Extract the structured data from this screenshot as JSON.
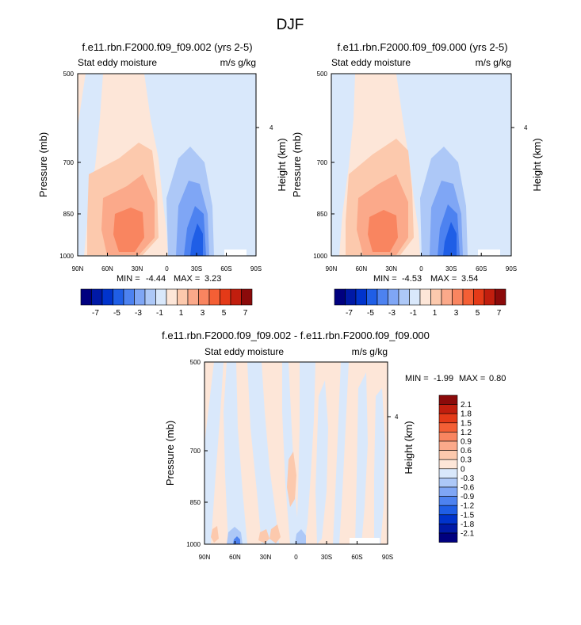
{
  "figure": {
    "title": "DJF"
  },
  "panels": [
    {
      "title": "f.e11.rbn.F2000.f09_f09.002 (yrs 2-5)",
      "left_label": "Stat eddy moisture",
      "right_label": "m/s g/kg",
      "ylabel": "Pressure (mb)",
      "y2label": "Height (km)",
      "yticks": [
        "500",
        "700",
        "850",
        "1000"
      ],
      "y2ticks": [
        "4"
      ],
      "xticks": [
        "90N",
        "60N",
        "30N",
        "0",
        "30S",
        "60S",
        "90S"
      ],
      "min_label": "MIN =",
      "min_value": "-4.44",
      "max_label": "MAX =",
      "max_value": "3.23"
    },
    {
      "title": "f.e11.rbn.F2000.f09_f09.000 (yrs 2-5)",
      "left_label": "Stat eddy moisture",
      "right_label": "m/s g/kg",
      "ylabel": "Pressure (mb)",
      "y2label": "Height (km)",
      "yticks": [
        "500",
        "700",
        "850",
        "1000"
      ],
      "y2ticks": [
        "4"
      ],
      "xticks": [
        "90N",
        "60N",
        "30N",
        "0",
        "30S",
        "60S",
        "90S"
      ],
      "min_label": "MIN =",
      "min_value": "-4.53",
      "max_label": "MAX =",
      "max_value": "3.54"
    },
    {
      "title": "f.e11.rbn.F2000.f09_f09.002 - f.e11.rbn.F2000.f09_f09.000",
      "left_label": "Stat eddy moisture",
      "right_label": "m/s g/kg",
      "ylabel": "Pressure (mb)",
      "y2label": "Height (km)",
      "yticks": [
        "500",
        "700",
        "850",
        "1000"
      ],
      "y2ticks": [
        "4"
      ],
      "xticks": [
        "90N",
        "60N",
        "30N",
        "0",
        "30S",
        "60S",
        "90S"
      ],
      "min_label": "MIN =",
      "min_value": "-1.99",
      "max_label": "MAX =",
      "max_value": "0.80"
    }
  ],
  "colorbar_top": {
    "labels": [
      "-7",
      "-5",
      "-3",
      "-1",
      "1",
      "3",
      "5",
      "7"
    ],
    "colors": [
      "#00007f",
      "#0019a6",
      "#0033cc",
      "#1f5ee6",
      "#4d82f0",
      "#7fa6f5",
      "#adc8f7",
      "#d9e8fb",
      "#fde6d8",
      "#fcc9ad",
      "#fba98a",
      "#f98560",
      "#f45f35",
      "#e43a18",
      "#c11e0e",
      "#8b0a0a"
    ]
  },
  "colorbar_diff": {
    "labels": [
      "2.1",
      "1.8",
      "1.5",
      "1.2",
      "0.9",
      "0.6",
      "0.3",
      "0",
      "-0.3",
      "-0.6",
      "-0.9",
      "-1.2",
      "-1.5",
      "-1.8",
      "-2.1"
    ],
    "colors": [
      "#8b0a0a",
      "#c11e0e",
      "#e43a18",
      "#f45f35",
      "#f98560",
      "#fba98a",
      "#fcc9ad",
      "#fde6d8",
      "#d9e8fb",
      "#adc8f7",
      "#7fa6f5",
      "#4d82f0",
      "#1f5ee6",
      "#0033cc",
      "#0019a6",
      "#00007f"
    ]
  },
  "chart_data": [
    {
      "type": "heatmap",
      "title": "f.e11.rbn.F2000.f09_f09.002 (yrs 2-5)",
      "xlabel": "",
      "ylabel": "Pressure (mb)",
      "x": [
        "90N",
        "60N",
        "30N",
        "0",
        "30S",
        "60S",
        "90S"
      ],
      "y": [
        500,
        700,
        850,
        1000
      ],
      "xlim": [
        90,
        -90
      ],
      "ylim": [
        1000,
        500
      ],
      "min": -4.44,
      "max": 3.23,
      "colorbar_levels": [
        -7,
        -5,
        -3,
        -1,
        1,
        3,
        5,
        7
      ]
    },
    {
      "type": "heatmap",
      "title": "f.e11.rbn.F2000.f09_f09.000 (yrs 2-5)",
      "xlabel": "",
      "ylabel": "Pressure (mb)",
      "x": [
        "90N",
        "60N",
        "30N",
        "0",
        "30S",
        "60S",
        "90S"
      ],
      "y": [
        500,
        700,
        850,
        1000
      ],
      "xlim": [
        90,
        -90
      ],
      "ylim": [
        1000,
        500
      ],
      "min": -4.53,
      "max": 3.54,
      "colorbar_levels": [
        -7,
        -5,
        -3,
        -1,
        1,
        3,
        5,
        7
      ]
    },
    {
      "type": "heatmap",
      "title": "f.e11.rbn.F2000.f09_f09.002 - f.e11.rbn.F2000.f09_f09.000",
      "xlabel": "",
      "ylabel": "Pressure (mb)",
      "x": [
        "90N",
        "60N",
        "30N",
        "0",
        "30S",
        "60S",
        "90S"
      ],
      "y": [
        500,
        700,
        850,
        1000
      ],
      "xlim": [
        90,
        -90
      ],
      "ylim": [
        1000,
        500
      ],
      "min": -1.99,
      "max": 0.8,
      "colorbar_levels": [
        -2.1,
        -1.8,
        -1.5,
        -1.2,
        -0.9,
        -0.6,
        -0.3,
        0,
        0.3,
        0.6,
        0.9,
        1.2,
        1.5,
        1.8,
        2.1
      ]
    }
  ]
}
